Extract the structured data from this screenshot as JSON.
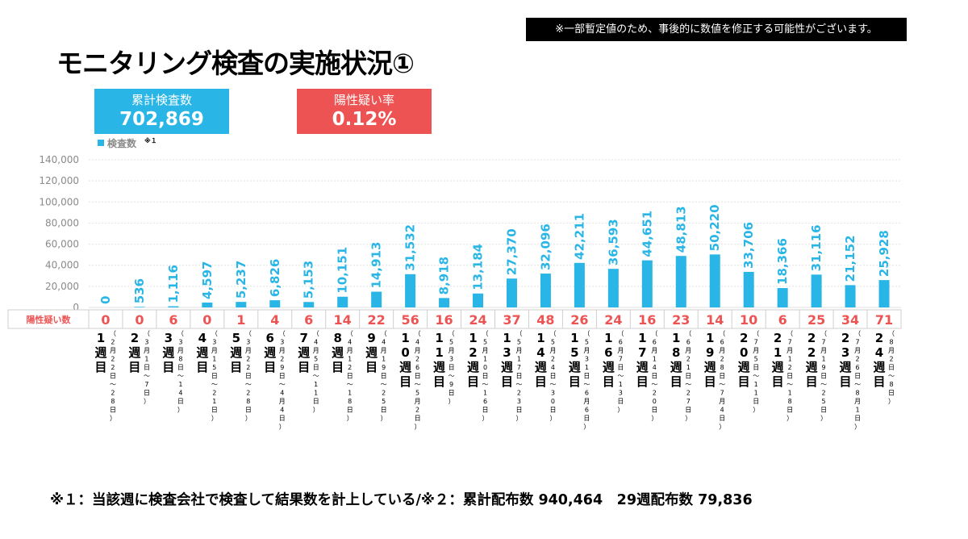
{
  "notice": "※一部暫定値のため、事後的に数値を修正する可能性がございます。",
  "title": "モニタリング検査の実施状況①",
  "summary": {
    "total_label": "累計検査数",
    "total_value": "702,869",
    "rate_label": "陽性疑い率",
    "rate_value": "0.12%"
  },
  "colors": {
    "bar": "#29b6e6",
    "positive": "#ee5353",
    "total_box": "#29b6e6",
    "rate_box": "#ee5353"
  },
  "footnote": "※１：当該週に検査会社で検査して結果数を計上している/※２：累計配布数 940,464　29週配布数 79,836",
  "chart_data": {
    "type": "bar",
    "legend": {
      "label": "検査数",
      "superscript": "※１",
      "placement": "top-left"
    },
    "ylim": [
      0,
      140000
    ],
    "yticks": [
      "0",
      "20,000",
      "40,000",
      "60,000",
      "80,000",
      "100,000",
      "120,000",
      "140,000"
    ],
    "grid": true,
    "row_label": "陽性疑い数",
    "categories": [
      {
        "week": "1週目",
        "period": "（2月22日～28日）"
      },
      {
        "week": "2週目",
        "period": "（3月1日～7日）"
      },
      {
        "week": "3週目",
        "period": "（3月8日～14日）"
      },
      {
        "week": "4週目",
        "period": "（3月15日～21日）"
      },
      {
        "week": "5週目",
        "period": "（3月22日～28日）"
      },
      {
        "week": "6週目",
        "period": "（3月29日～4月4日）"
      },
      {
        "week": "7週目",
        "period": "（4月5日～11日）"
      },
      {
        "week": "8週目",
        "period": "（4月12日～18日）"
      },
      {
        "week": "9週目",
        "period": "（4月19日～25日）"
      },
      {
        "week": "10週目",
        "period": "（4月26日～5月2日）"
      },
      {
        "week": "11週目",
        "period": "（5月3日～9日）"
      },
      {
        "week": "12週目",
        "period": "（5月10日～16日）"
      },
      {
        "week": "13週目",
        "period": "（5月17日～23日）"
      },
      {
        "week": "14週目",
        "period": "（5月24日～30日）"
      },
      {
        "week": "15週目",
        "period": "（5月31日～6月6日）"
      },
      {
        "week": "16週目",
        "period": "（6月7日～13日）"
      },
      {
        "week": "17週目",
        "period": "（6月14日～20日）"
      },
      {
        "week": "18週目",
        "period": "（6月21日～27日）"
      },
      {
        "week": "19週目",
        "period": "（6月28日～7月4日）"
      },
      {
        "week": "20週目",
        "period": "（7月5日～11日）"
      },
      {
        "week": "21週目",
        "period": "（7月12日～18日）"
      },
      {
        "week": "22週目",
        "period": "（7月19日～25日）"
      },
      {
        "week": "23週目",
        "period": "（7月26日～8月1日）"
      },
      {
        "week": "24週目",
        "period": "（8月2日～8日）"
      }
    ],
    "values": [
      0,
      536,
      1116,
      4597,
      5237,
      6826,
      5153,
      10151,
      14913,
      31532,
      8918,
      13184,
      27370,
      32096,
      42211,
      36593,
      44651,
      48813,
      50220,
      33706,
      18366,
      31116,
      21152,
      25928
    ],
    "value_labels": [
      "0",
      "536",
      "1,116",
      "4,597",
      "5,237",
      "6,826",
      "5,153",
      "10,151",
      "14,913",
      "31,532",
      "8,918",
      "13,184",
      "27,370",
      "32,096",
      "42,211",
      "36,593",
      "44,651",
      "48,813",
      "50,220",
      "33,706",
      "18,366",
      "31,116",
      "21,152",
      "25,928"
    ],
    "positive": [
      "0",
      "0",
      "6",
      "0",
      "1",
      "4",
      "6",
      "14",
      "22",
      "56",
      "16",
      "24",
      "37",
      "48",
      "26",
      "24",
      "16",
      "23",
      "14",
      "10",
      "6",
      "25",
      "34",
      "71"
    ]
  }
}
